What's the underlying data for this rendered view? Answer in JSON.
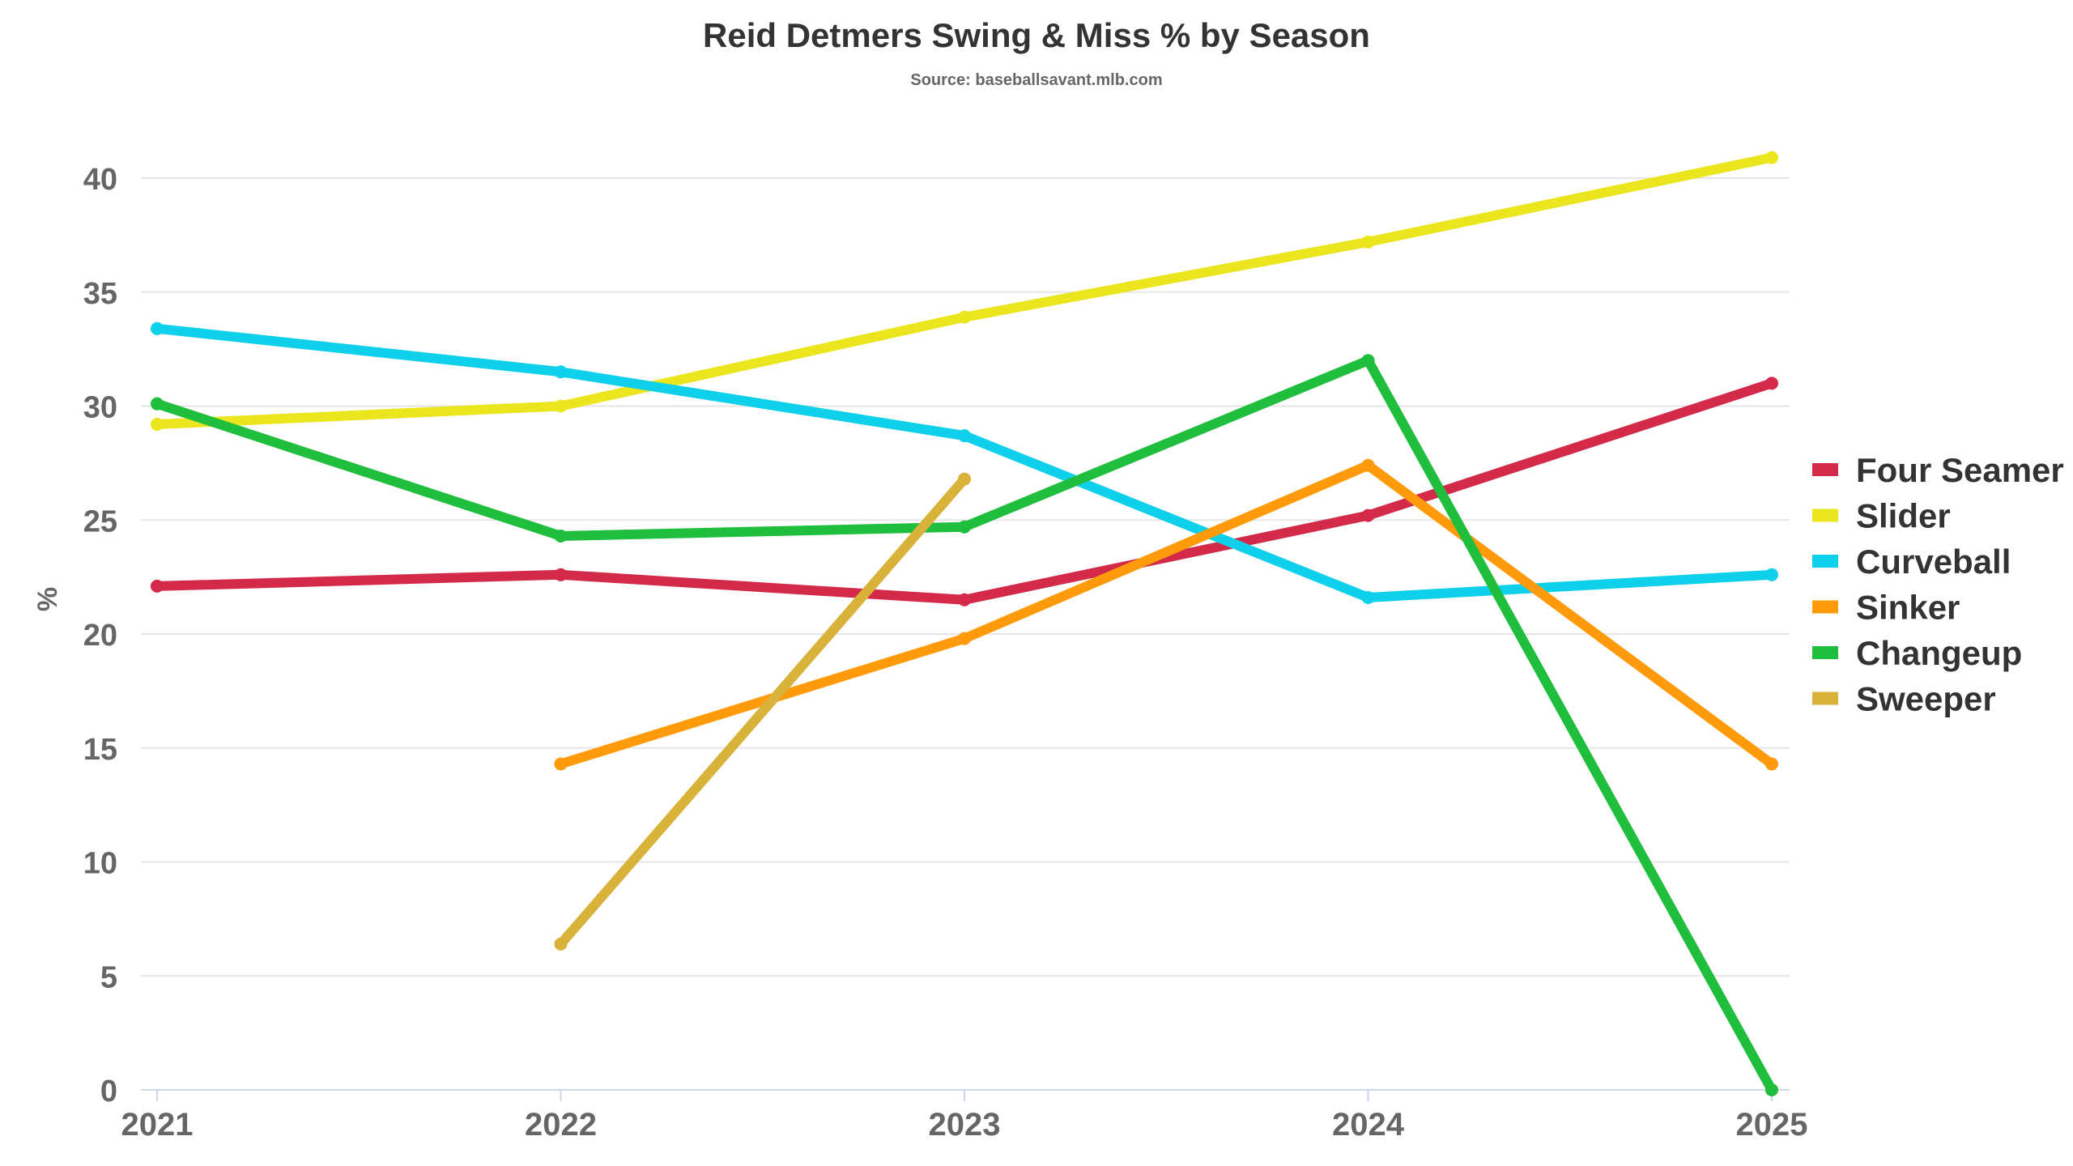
{
  "chart_data": {
    "type": "line",
    "title": "Reid Detmers Swing & Miss % by Season",
    "subtitle": "Source: baseballsavant.mlb.com",
    "xlabel": "",
    "ylabel": "%",
    "x": [
      "2021",
      "2022",
      "2023",
      "2024",
      "2025"
    ],
    "ylim": [
      0,
      40
    ],
    "yticks": [
      0,
      5,
      10,
      15,
      20,
      25,
      30,
      35,
      40
    ],
    "grid": true,
    "legend_position": "right",
    "series": [
      {
        "name": "Four Seamer",
        "color": "#d42a4a",
        "values": [
          22.1,
          22.6,
          21.5,
          25.2,
          31.0
        ]
      },
      {
        "name": "Slider",
        "color": "#ebe51e",
        "values": [
          29.2,
          30.0,
          33.9,
          37.2,
          40.9
        ]
      },
      {
        "name": "Curveball",
        "color": "#0fd0ea",
        "values": [
          33.4,
          31.5,
          28.7,
          21.6,
          22.6
        ]
      },
      {
        "name": "Sinker",
        "color": "#ff9b0a",
        "values": [
          null,
          14.3,
          19.8,
          27.4,
          14.3
        ]
      },
      {
        "name": "Changeup",
        "color": "#1fbe3c",
        "values": [
          30.1,
          24.3,
          24.7,
          32.0,
          0.0
        ]
      },
      {
        "name": "Sweeper",
        "color": "#d9b23a",
        "values": [
          null,
          6.4,
          26.8,
          null,
          null
        ]
      }
    ]
  }
}
